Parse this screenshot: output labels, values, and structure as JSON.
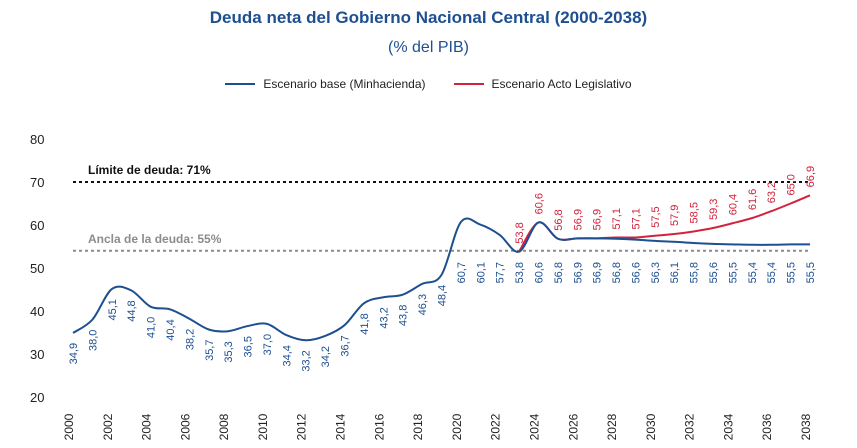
{
  "chart_data": {
    "type": "line",
    "title": "Deuda neta del Gobierno Nacional Central (2000-2038)",
    "subtitle": "(% del PIB)",
    "xlabel": "",
    "ylabel": "",
    "ylim": [
      20,
      80
    ],
    "xlim": [
      2000,
      2038
    ],
    "yticks": [
      20,
      30,
      40,
      50,
      60,
      70,
      80
    ],
    "xticks": [
      2000,
      2002,
      2004,
      2006,
      2008,
      2010,
      2012,
      2014,
      2016,
      2018,
      2020,
      2022,
      2024,
      2026,
      2028,
      2030,
      2032,
      2034,
      2036,
      2038
    ],
    "legend_position": "top-center",
    "series": [
      {
        "name": "Escenario base (Minhacienda)",
        "color": "#1d4f91",
        "x": [
          2000,
          2001,
          2002,
          2003,
          2004,
          2005,
          2006,
          2007,
          2008,
          2009,
          2010,
          2011,
          2012,
          2013,
          2014,
          2015,
          2016,
          2017,
          2018,
          2019,
          2020,
          2021,
          2022,
          2023,
          2024,
          2025,
          2026,
          2027,
          2028,
          2029,
          2030,
          2031,
          2032,
          2033,
          2034,
          2035,
          2036,
          2037,
          2038
        ],
        "values": [
          34.9,
          38.0,
          45.1,
          44.8,
          41.0,
          40.4,
          38.2,
          35.7,
          35.3,
          36.5,
          37.0,
          34.4,
          33.2,
          34.2,
          36.7,
          41.8,
          43.2,
          43.8,
          46.3,
          48.4,
          60.7,
          60.1,
          57.7,
          53.8,
          60.6,
          56.8,
          56.9,
          56.9,
          56.8,
          56.6,
          56.3,
          56.1,
          55.8,
          55.6,
          55.5,
          55.4,
          55.4,
          55.5,
          55.5
        ]
      },
      {
        "name": "Escenario Acto Legislativo",
        "color": "#d2233c",
        "x": [
          2023,
          2024,
          2025,
          2026,
          2027,
          2028,
          2029,
          2030,
          2031,
          2032,
          2033,
          2034,
          2035,
          2036,
          2037,
          2038
        ],
        "values": [
          53.8,
          60.6,
          56.8,
          56.9,
          56.9,
          57.1,
          57.1,
          57.5,
          57.9,
          58.5,
          59.3,
          60.4,
          61.6,
          63.2,
          65.0,
          66.9
        ]
      }
    ],
    "annotations": [
      {
        "label": "Límite de deuda: 71%",
        "value": 71,
        "color": "#111111"
      },
      {
        "label": "Ancla de la deuda: 55%",
        "value": 55,
        "color": "#8c8c8c"
      }
    ]
  }
}
